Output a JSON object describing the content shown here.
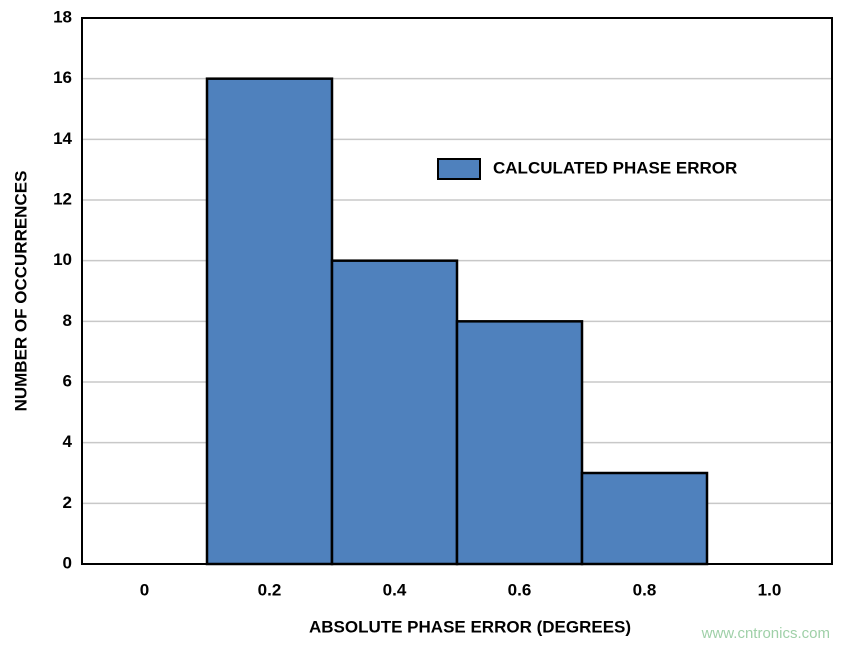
{
  "chart_data": {
    "type": "bar",
    "x_label": "ABSOLUTE PHASE ERROR (DEGREES)",
    "y_label": "NUMBER OF OCCURRENCES",
    "categories": [
      "0",
      "0.2",
      "0.4",
      "0.6",
      "0.8",
      "1.0"
    ],
    "series": [
      {
        "name": "CALCULATED PHASE ERROR",
        "color": "#4f81bd",
        "values": [
          0,
          16,
          10,
          8,
          3,
          0
        ]
      }
    ],
    "ylim": [
      0,
      18
    ],
    "yticks": [
      0,
      2,
      4,
      6,
      8,
      10,
      12,
      14,
      16,
      18
    ],
    "grid": true,
    "legend": "upper right",
    "watermark": "www.cntronics.com"
  }
}
